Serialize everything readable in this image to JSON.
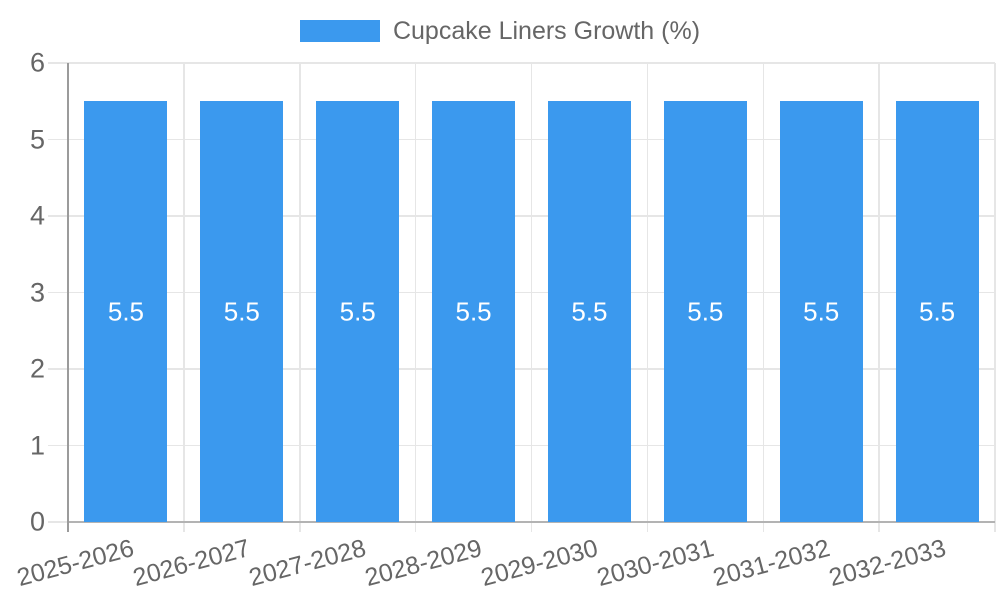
{
  "legend": {
    "label": "Cupcake Liners Growth (%)"
  },
  "chart_data": {
    "type": "bar",
    "title": "",
    "xlabel": "",
    "ylabel": "",
    "categories": [
      "2025-2026",
      "2026-2027",
      "2027-2028",
      "2028-2029",
      "2029-2030",
      "2030-2031",
      "2031-2032",
      "2032-2033"
    ],
    "series": [
      {
        "name": "Cupcake Liners Growth (%)",
        "values": [
          5.5,
          5.5,
          5.5,
          5.5,
          5.5,
          5.5,
          5.5,
          5.5
        ]
      }
    ],
    "value_labels": [
      "5.5",
      "5.5",
      "5.5",
      "5.5",
      "5.5",
      "5.5",
      "5.5",
      "5.5"
    ],
    "ylim": [
      0,
      6
    ],
    "yticks": [
      0,
      1,
      2,
      3,
      4,
      5,
      6
    ],
    "grid": "on",
    "legend_position": "top",
    "colors": {
      "bar": "#3b99ee",
      "bar_label": "#ffffff",
      "grid": "#e6e6e6",
      "axis_line": "#9b9b9b",
      "zero_line": "#b3b3b3",
      "text": "#666666"
    }
  }
}
